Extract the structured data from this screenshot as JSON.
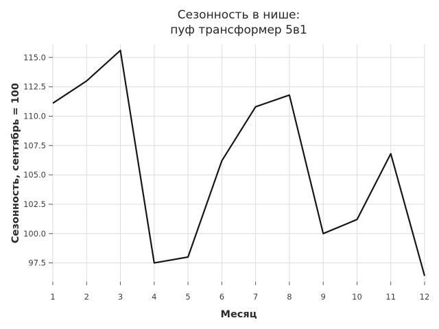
{
  "chart_data": {
    "type": "line",
    "title": "Сезонность в нише:\nпуф трансформер 5в1",
    "title_lines": [
      "Сезонность в нише:",
      "пуф трансформер 5в1"
    ],
    "xlabel": "Месяц",
    "ylabel": "Сезонность, сентябрь = 100",
    "x": [
      1,
      2,
      3,
      4,
      5,
      6,
      7,
      8,
      9,
      10,
      11,
      12
    ],
    "values": [
      111.1,
      113.0,
      115.6,
      97.5,
      98.0,
      106.2,
      110.8,
      111.8,
      100.0,
      101.2,
      106.8,
      96.4
    ],
    "x_tick_labels": [
      "1",
      "2",
      "3",
      "4",
      "5",
      "6",
      "7",
      "8",
      "9",
      "10",
      "11",
      "12"
    ],
    "y_ticks": [
      97.5,
      100.0,
      102.5,
      105.0,
      107.5,
      110.0,
      112.5,
      115.0
    ],
    "y_tick_labels": [
      "97.5",
      "100.0",
      "102.5",
      "105.0",
      "107.5",
      "110.0",
      "112.5",
      "115.0"
    ],
    "xlim": [
      1,
      12
    ],
    "ylim": [
      95.9,
      116.1
    ],
    "grid": true,
    "legend": false,
    "colors": {
      "line": "#161616",
      "grid": "#dcdcdc",
      "tick_mark": "#555555",
      "tick_label": "#3d3d3d",
      "axis_label": "#2b2b2b",
      "title": "#262626",
      "background": "#ffffff"
    }
  }
}
